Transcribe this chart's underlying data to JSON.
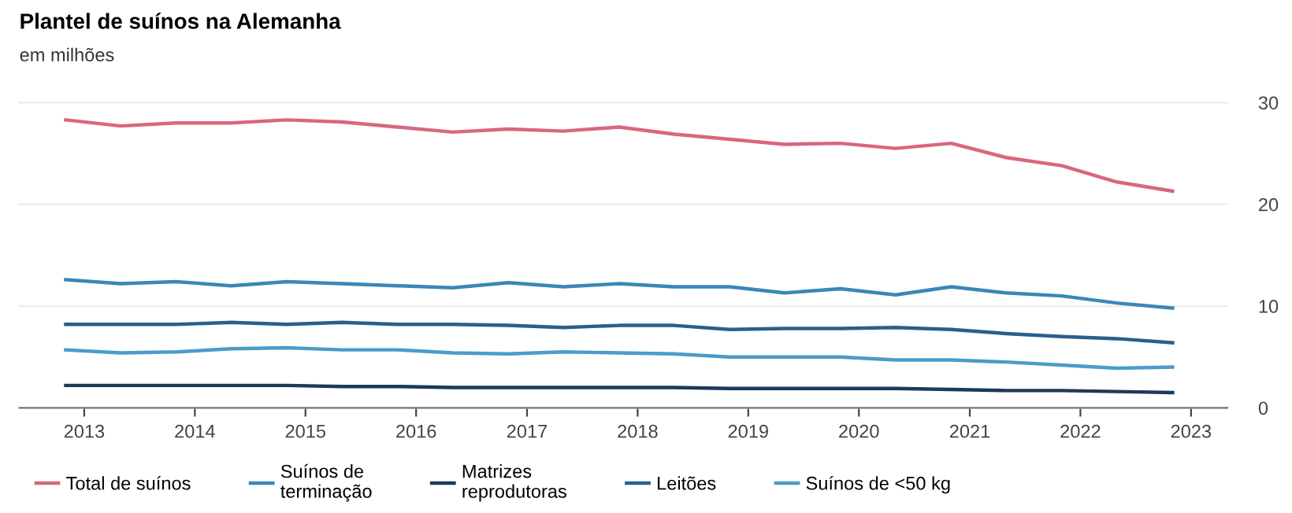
{
  "chart_data": {
    "type": "line",
    "title": "Plantel de suínos na Alemanha",
    "subtitle": "em milhões",
    "x": [
      "2012-11",
      "2013-05",
      "2013-11",
      "2014-05",
      "2014-11",
      "2015-05",
      "2015-11",
      "2016-05",
      "2016-11",
      "2017-05",
      "2017-11",
      "2018-05",
      "2018-11",
      "2019-05",
      "2019-11",
      "2020-05",
      "2020-11",
      "2021-05",
      "2021-11",
      "2022-05",
      "2022-11"
    ],
    "series": [
      {
        "name": "Total de suínos",
        "color": "#d9677d",
        "values": [
          28.3,
          27.7,
          28.0,
          28.0,
          28.3,
          28.1,
          27.6,
          27.1,
          27.4,
          27.2,
          27.6,
          26.9,
          26.4,
          25.9,
          26.0,
          25.5,
          26.0,
          24.6,
          23.8,
          22.2,
          21.3
        ]
      },
      {
        "name": "Suínos de\nterminação",
        "color": "#3a87b8",
        "values": [
          12.6,
          12.2,
          12.4,
          12.0,
          12.4,
          12.2,
          12.0,
          11.8,
          12.3,
          11.9,
          12.2,
          11.9,
          11.9,
          11.3,
          11.7,
          11.1,
          11.9,
          11.3,
          11.0,
          10.3,
          9.8
        ]
      },
      {
        "name": "Matrizes\nreprodutoras",
        "color": "#1d3a57",
        "values": [
          2.2,
          2.2,
          2.2,
          2.2,
          2.2,
          2.1,
          2.1,
          2.0,
          2.0,
          2.0,
          2.0,
          2.0,
          1.9,
          1.9,
          1.9,
          1.9,
          1.8,
          1.7,
          1.7,
          1.6,
          1.5
        ]
      },
      {
        "name": "Leitões",
        "color": "#2b5f8a",
        "values": [
          8.2,
          8.2,
          8.2,
          8.4,
          8.2,
          8.4,
          8.2,
          8.2,
          8.1,
          7.9,
          8.1,
          8.1,
          7.7,
          7.8,
          7.8,
          7.9,
          7.7,
          7.3,
          7.0,
          6.8,
          6.4
        ]
      },
      {
        "name": "Suínos de <50 kg",
        "color": "#4b9cc9",
        "values": [
          5.7,
          5.4,
          5.5,
          5.8,
          5.9,
          5.7,
          5.7,
          5.4,
          5.3,
          5.5,
          5.4,
          5.3,
          5.0,
          5.0,
          5.0,
          4.7,
          4.7,
          4.5,
          4.2,
          3.9,
          4.0
        ]
      }
    ],
    "xlim": [
      "2012-06",
      "2023-05"
    ],
    "xticks": [
      "2013",
      "2014",
      "2015",
      "2016",
      "2017",
      "2018",
      "2019",
      "2020",
      "2021",
      "2022",
      "2023"
    ],
    "ylim": [
      0,
      30
    ],
    "yticks": [
      0,
      10,
      20,
      30
    ],
    "grid": "y",
    "legend": "bottom",
    "marker": "none",
    "line_style": "solid"
  }
}
